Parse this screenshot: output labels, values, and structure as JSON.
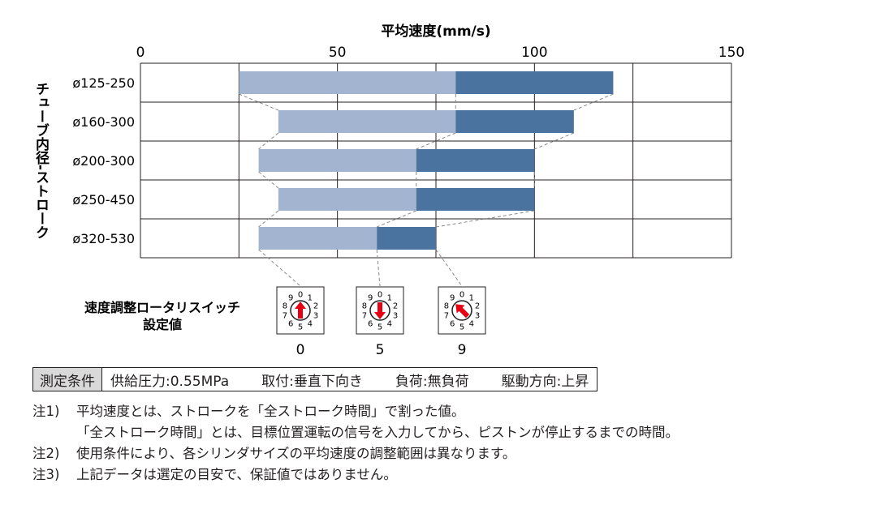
{
  "chart_data": {
    "type": "bar",
    "orientation": "horizontal",
    "stacked": true,
    "title": "平均速度(mm/s)",
    "ylabel": "チューブ内径-ストローク",
    "xlim": [
      0,
      150
    ],
    "xticks": [
      0,
      50,
      100,
      150
    ],
    "categories": [
      "ø125-250",
      "ø160-300",
      "ø200-300",
      "ø250-450",
      "ø320-530"
    ],
    "ranges": [
      {
        "start": 25,
        "mid": 80,
        "end": 120
      },
      {
        "start": 35,
        "mid": 80,
        "end": 110
      },
      {
        "start": 30,
        "mid": 70,
        "end": 100
      },
      {
        "start": 35,
        "mid": 70,
        "end": 100
      },
      {
        "start": 30,
        "mid": 60,
        "end": 75
      }
    ],
    "colors": {
      "light": "#a3b4d0",
      "dark": "#4a73a0",
      "grid": "#231f20",
      "guide": "#888888"
    },
    "grid": true
  },
  "switch": {
    "label_line1": "速度調整ロータリスイッチ",
    "label_line2": "設定値",
    "dial_numbers": [
      "0",
      "1",
      "2",
      "3",
      "4",
      "5",
      "6",
      "7",
      "8",
      "9"
    ],
    "settings": [
      {
        "value": "0",
        "arrow_direction": "up",
        "speed_ref": 0
      },
      {
        "value": "5",
        "arrow_direction": "down",
        "speed_ref": 1
      },
      {
        "value": "9",
        "arrow_direction": "up-left",
        "speed_ref": 2
      }
    ],
    "arrow_color": "#e60012",
    "icon": "rotary-switch-icon"
  },
  "conditions": {
    "title": "測定条件",
    "items": [
      "供給圧力:0.55MPa",
      "取付:垂直下向き",
      "負荷:無負荷",
      "駆動方向:上昇"
    ]
  },
  "notes": [
    {
      "num": "注1)",
      "text": "平均速度とは、ストロークを「全ストローク時間」で割った値。"
    },
    {
      "num": "",
      "text": "「全ストローク時間」とは、目標位置運転の信号を入力してから、ピストンが停止するまでの時間。"
    },
    {
      "num": "注2)",
      "text": "使用条件により、各シリンダサイズの平均速度の調整範囲は異なります。"
    },
    {
      "num": "注3)",
      "text": "上記データは選定の目安で、保証値ではありません。"
    }
  ]
}
